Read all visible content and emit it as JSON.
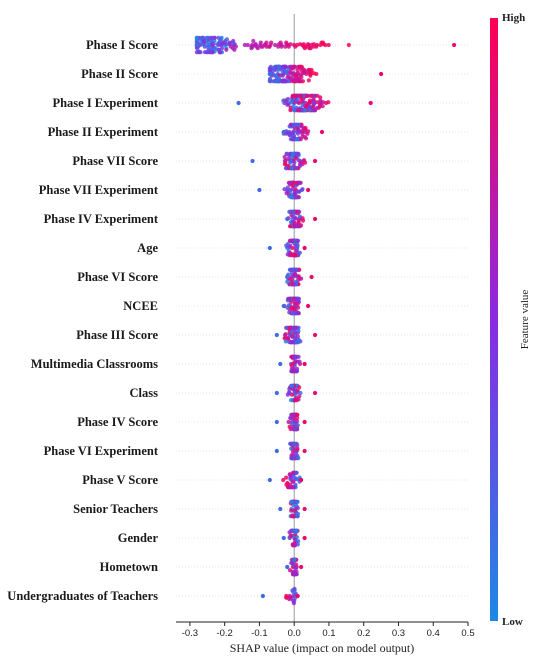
{
  "chart_data": {
    "type": "scatter",
    "subtype": "shap-beeswarm",
    "title": "",
    "xlabel": "SHAP value (impact on model output)",
    "ylabel": "",
    "xlim": [
      -0.34,
      0.5
    ],
    "xticks": [
      -0.3,
      -0.2,
      -0.1,
      0.0,
      0.1,
      0.2,
      0.3,
      0.4,
      0.5
    ],
    "zero_line": true,
    "colorbar": {
      "title": "Feature value",
      "high_label": "High",
      "low_label": "Low",
      "low_color": "#1e88e5",
      "mid_color": "#8a2be2",
      "high_color": "#ff0052"
    },
    "features": [
      {
        "name": "Phase I Score",
        "min": -0.28,
        "max": 0.46,
        "center": -0.24,
        "spread": 0.05,
        "hiShift": 0.34,
        "density": "high"
      },
      {
        "name": "Phase II Score",
        "min": -0.07,
        "max": 0.25,
        "center": -0.04,
        "spread": 0.03,
        "hiShift": 0.08,
        "density": "high"
      },
      {
        "name": "Phase I Experiment",
        "min": -0.16,
        "max": 0.22,
        "center": 0.02,
        "spread": 0.04,
        "hiShift": 0.02,
        "density": "high"
      },
      {
        "name": "Phase II Experiment",
        "min": -0.03,
        "max": 0.08,
        "center": 0.0,
        "spread": 0.02,
        "hiShift": 0.03,
        "density": "medium"
      },
      {
        "name": "Phase VII Score",
        "min": -0.12,
        "max": 0.06,
        "center": 0.0,
        "spread": 0.02,
        "hiShift": 0.0,
        "density": "medium"
      },
      {
        "name": "Phase VII Experiment",
        "min": -0.1,
        "max": 0.04,
        "center": 0.0,
        "spread": 0.02,
        "hiShift": 0.0,
        "density": "medium"
      },
      {
        "name": "Phase IV Experiment",
        "min": -0.02,
        "max": 0.06,
        "center": 0.0,
        "spread": 0.015,
        "hiShift": 0.01,
        "density": "medium"
      },
      {
        "name": "Age",
        "min": -0.07,
        "max": 0.03,
        "center": 0.0,
        "spread": 0.015,
        "hiShift": 0.0,
        "density": "medium"
      },
      {
        "name": "Phase VI Score",
        "min": -0.02,
        "max": 0.05,
        "center": 0.0,
        "spread": 0.015,
        "hiShift": 0.0,
        "density": "medium"
      },
      {
        "name": "NCEE",
        "min": -0.03,
        "max": 0.04,
        "center": 0.0,
        "spread": 0.015,
        "hiShift": 0.0,
        "density": "medium"
      },
      {
        "name": "Phase III Score",
        "min": -0.05,
        "max": 0.06,
        "center": 0.0,
        "spread": 0.015,
        "hiShift": -0.01,
        "density": "medium"
      },
      {
        "name": "Multimedia Classrooms",
        "min": -0.04,
        "max": 0.03,
        "center": 0.0,
        "spread": 0.012,
        "hiShift": 0.0,
        "density": "low"
      },
      {
        "name": "Class",
        "min": -0.05,
        "max": 0.06,
        "center": 0.0,
        "spread": 0.012,
        "hiShift": 0.0,
        "density": "low"
      },
      {
        "name": "Phase IV Score",
        "min": -0.05,
        "max": 0.03,
        "center": 0.0,
        "spread": 0.012,
        "hiShift": 0.0,
        "density": "low"
      },
      {
        "name": "Phase VI Experiment",
        "min": -0.05,
        "max": 0.03,
        "center": 0.0,
        "spread": 0.012,
        "hiShift": 0.0,
        "density": "low"
      },
      {
        "name": "Phase V Score",
        "min": -0.07,
        "max": 0.02,
        "center": 0.0,
        "spread": 0.012,
        "hiShift": -0.02,
        "density": "low"
      },
      {
        "name": "Senior Teachers",
        "min": -0.04,
        "max": 0.03,
        "center": 0.0,
        "spread": 0.01,
        "hiShift": 0.0,
        "density": "low"
      },
      {
        "name": "Gender",
        "min": -0.03,
        "max": 0.03,
        "center": 0.0,
        "spread": 0.01,
        "hiShift": 0.0,
        "density": "low"
      },
      {
        "name": "Hometown",
        "min": -0.02,
        "max": 0.02,
        "center": 0.0,
        "spread": 0.008,
        "hiShift": 0.0,
        "density": "low"
      },
      {
        "name": "Undergraduates of Teachers",
        "min": -0.09,
        "max": 0.01,
        "center": 0.0,
        "spread": 0.006,
        "hiShift": -0.02,
        "density": "vlow"
      }
    ]
  }
}
